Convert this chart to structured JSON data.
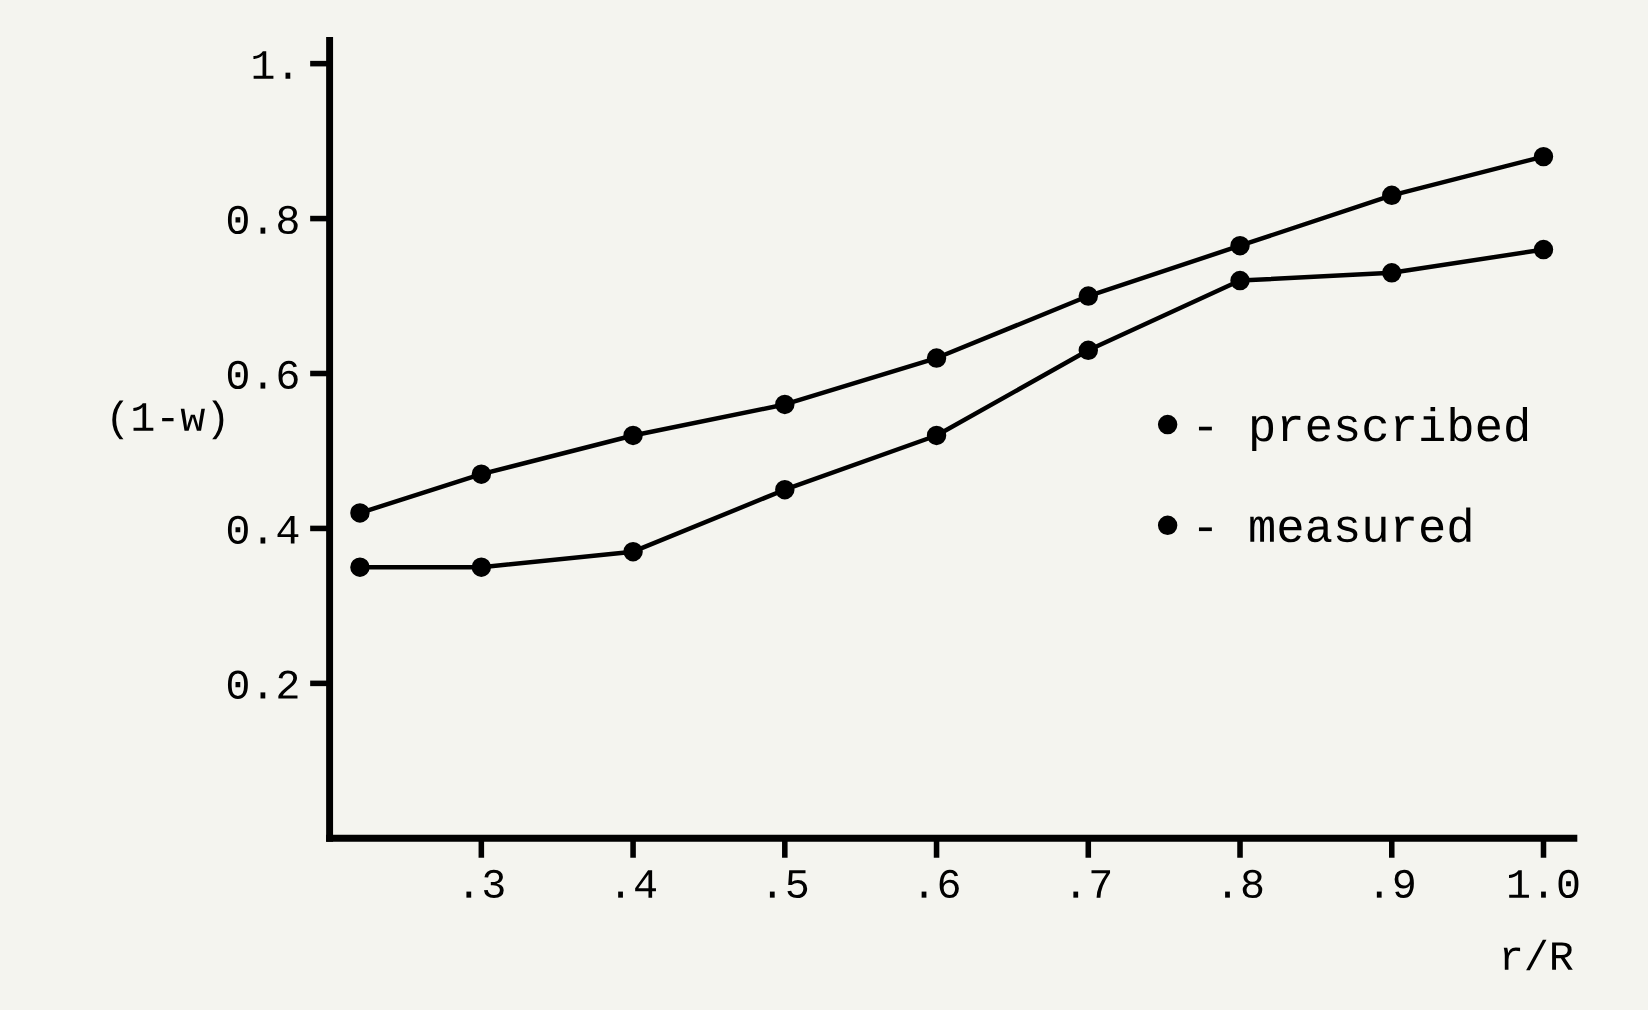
{
  "chart_data": {
    "type": "line",
    "xlabel": "r/R",
    "ylabel": "(1-w)",
    "x": [
      0.22,
      0.3,
      0.4,
      0.5,
      0.6,
      0.7,
      0.8,
      0.9,
      1.0
    ],
    "series": [
      {
        "name": "- prescribed",
        "color": "#000000",
        "marker": "circle",
        "values": [
          0.42,
          0.47,
          0.52,
          0.56,
          0.62,
          0.7,
          0.765,
          0.83,
          0.88
        ]
      },
      {
        "name": "- measured",
        "color": "#000000",
        "marker": "circle",
        "values": [
          0.35,
          0.35,
          0.37,
          0.45,
          0.52,
          0.63,
          0.72,
          0.73,
          0.76
        ]
      }
    ],
    "xlim": [
      0.2,
      1.02
    ],
    "xticks": [
      {
        "value": 0.3,
        "label": ".3"
      },
      {
        "value": 0.4,
        "label": ".4"
      },
      {
        "value": 0.5,
        "label": ".5"
      },
      {
        "value": 0.6,
        "label": ".6"
      },
      {
        "value": 0.7,
        "label": ".7"
      },
      {
        "value": 0.8,
        "label": ".8"
      },
      {
        "value": 0.9,
        "label": ".9"
      },
      {
        "value": 1.0,
        "label": "1.0"
      }
    ],
    "ylim": [
      0,
      1.03
    ],
    "yticks": [
      0.2,
      0.4,
      0.6,
      0.8,
      {
        "value": 1,
        "label": "1."
      }
    ],
    "grid": false,
    "legend": "right",
    "line_style": "solid"
  }
}
